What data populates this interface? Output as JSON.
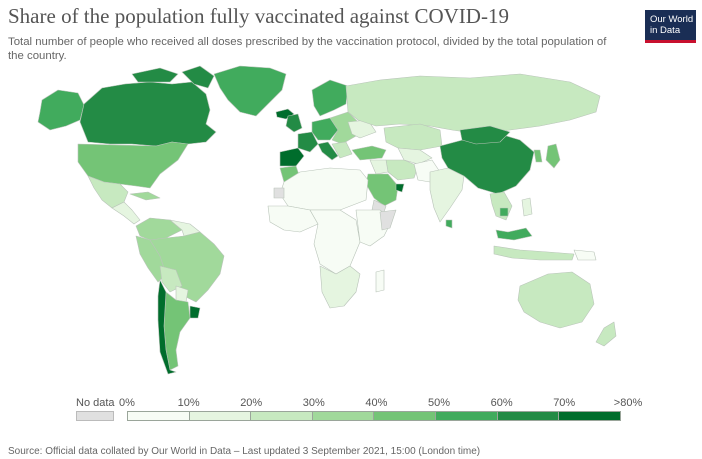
{
  "header": {
    "title": "Share of the population fully vaccinated against COVID-19",
    "subtitle": "Total number of people who received all doses prescribed by the vaccination protocol, divided by the total population of the country."
  },
  "logo": {
    "line1": "Our World",
    "line2": "in Data",
    "bg_color": "#1a2e55",
    "accent_color": "#c8102e"
  },
  "legend": {
    "no_data_label": "No data",
    "no_data_color": "#e0e0e0",
    "ticks": [
      "0%",
      "10%",
      "20%",
      "30%",
      "40%",
      "50%",
      "60%",
      "70%",
      ">80%"
    ],
    "bin_colors": [
      "#f7fcf5",
      "#e5f5e0",
      "#c7e9c0",
      "#a1d99b",
      "#74c476",
      "#41ab5d",
      "#238b45",
      "#006d2c"
    ]
  },
  "source": "Source: Official data collated by Our World in Data – Last updated 3 September 2021, 15:00 (London time)",
  "colors": {
    "ocean": "#ffffff",
    "border": "#b9c4b9"
  }
}
